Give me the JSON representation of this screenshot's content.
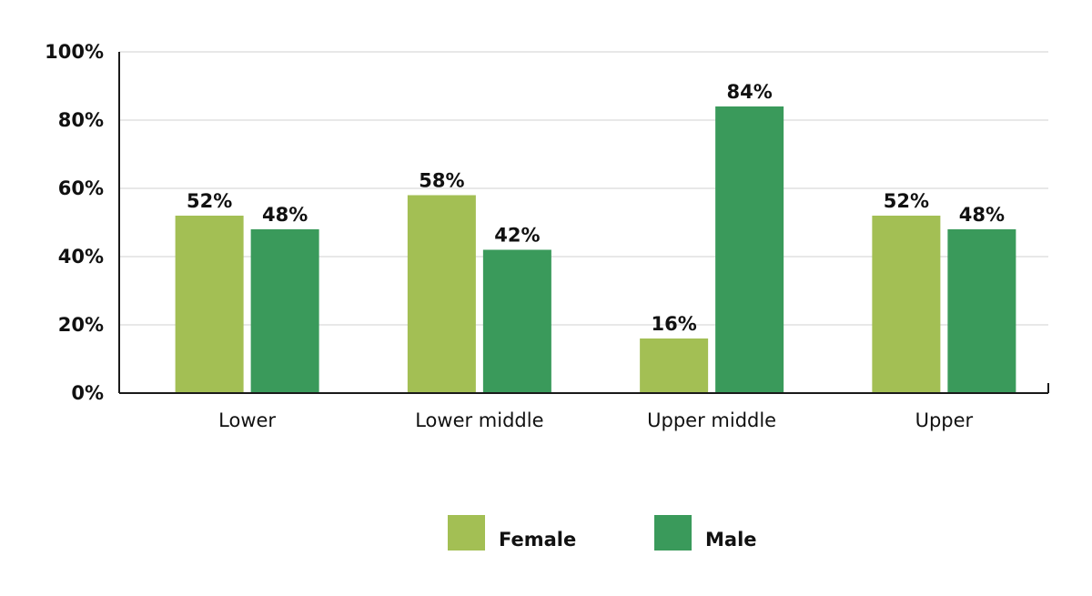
{
  "chart_data": {
    "type": "bar",
    "categories": [
      "Lower",
      "Lower middle",
      "Upper middle",
      "Upper"
    ],
    "series": [
      {
        "name": "Female",
        "values": [
          52,
          58,
          16,
          52
        ],
        "color": "#a3bf54"
      },
      {
        "name": "Male",
        "values": [
          48,
          42,
          84,
          48
        ],
        "color": "#3a9a5b"
      }
    ],
    "data_labels": [
      [
        "52%",
        "58%",
        "16%",
        "52%"
      ],
      [
        "48%",
        "42%",
        "84%",
        "48%"
      ]
    ],
    "y_ticks": [
      "0%",
      "20%",
      "40%",
      "60%",
      "80%",
      "100%"
    ],
    "ylim": [
      0,
      100
    ],
    "grid": true,
    "legend": "bottom-center",
    "title": "",
    "xlabel": "",
    "ylabel": ""
  }
}
